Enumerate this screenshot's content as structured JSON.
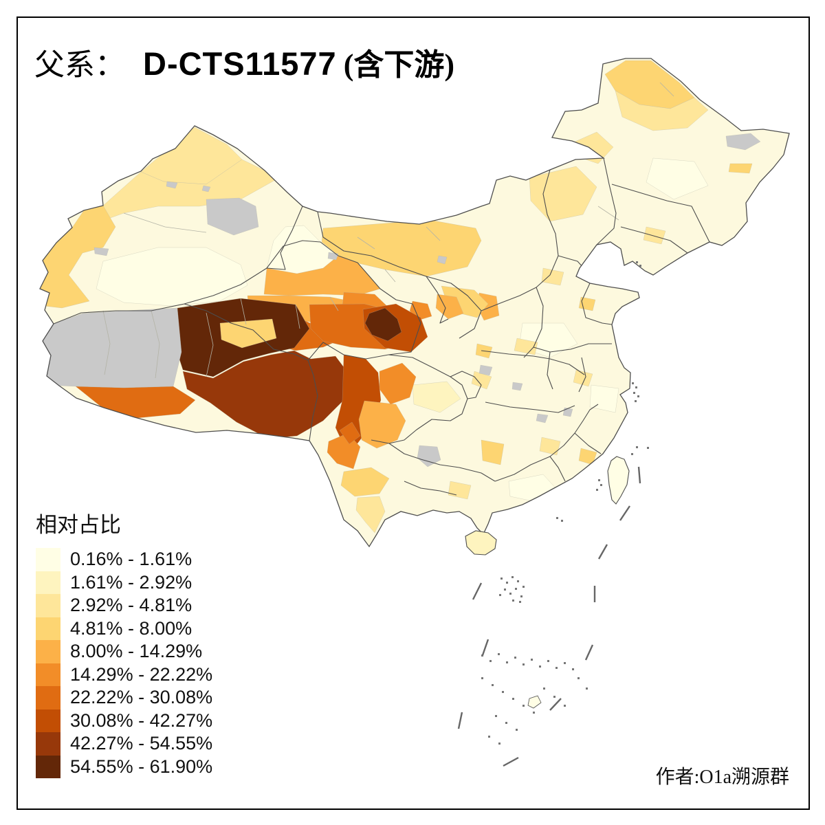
{
  "title": {
    "prefix": "父系：",
    "haplogroup": "D-CTS11577",
    "suffix": "(含下游)"
  },
  "legend": {
    "title": "相对占比",
    "classes": [
      {
        "label": "0.16% - 1.61%",
        "color": "#FFFEE5"
      },
      {
        "label": "1.61% - 2.92%",
        "color": "#FEF4BF"
      },
      {
        "label": "2.92% - 4.81%",
        "color": "#FEE69A"
      },
      {
        "label": "4.81% - 8.00%",
        "color": "#FDD572"
      },
      {
        "label": "8.00% - 14.29%",
        "color": "#FCB148"
      },
      {
        "label": "14.29% - 22.22%",
        "color": "#F28D28"
      },
      {
        "label": "22.22% - 30.08%",
        "color": "#E06C12"
      },
      {
        "label": "30.08% - 42.27%",
        "color": "#C24E04"
      },
      {
        "label": "42.27% - 54.55%",
        "color": "#97380A"
      },
      {
        "label": "54.55% - 61.90%",
        "color": "#632708"
      }
    ],
    "no_data_color": "#C9C9C9"
  },
  "attribution": "作者:O1a溯源群",
  "colors": {
    "background": "#FFFFFF",
    "frame": "#000000",
    "base_fill": "#FDF9DE",
    "coast": "#4D4D4D",
    "province_border": "#4D4D4D",
    "prefecture_border": "#B3B3A6",
    "island_dot": "#777777",
    "dash_line": "#666666"
  },
  "chart_data": {
    "type": "choropleth",
    "region": "China, prefecture-level divisions (with Taiwan, Hainan and South China Sea dash line)",
    "variable": "相对占比 (relative frequency of paternal haplogroup D-CTS11577 incl. downstream)",
    "bins": [
      "0.16% - 1.61%",
      "1.61% - 2.92%",
      "2.92% - 4.81%",
      "4.81% - 8.00%",
      "8.00% - 14.29%",
      "14.29% - 22.22%",
      "22.22% - 30.08%",
      "30.08% - 42.27%",
      "42.27% - 54.55%",
      "54.55% - 61.90%"
    ],
    "palette": [
      "#FFFEE5",
      "#FEF4BF",
      "#FEE69A",
      "#FDD572",
      "#FCB148",
      "#F28D28",
      "#E06C12",
      "#C24E04",
      "#97380A",
      "#632708"
    ],
    "pattern": "Highest classes (42-62%) on the Tibetan Plateau (Tibet, Qinghai, west Sichuan); oranges across Gansu corridor and NW Yunnan; pale yellows over eastern and northeastern China; gray = no data (W Tibet, Turpan area, scattered prefectures)"
  }
}
